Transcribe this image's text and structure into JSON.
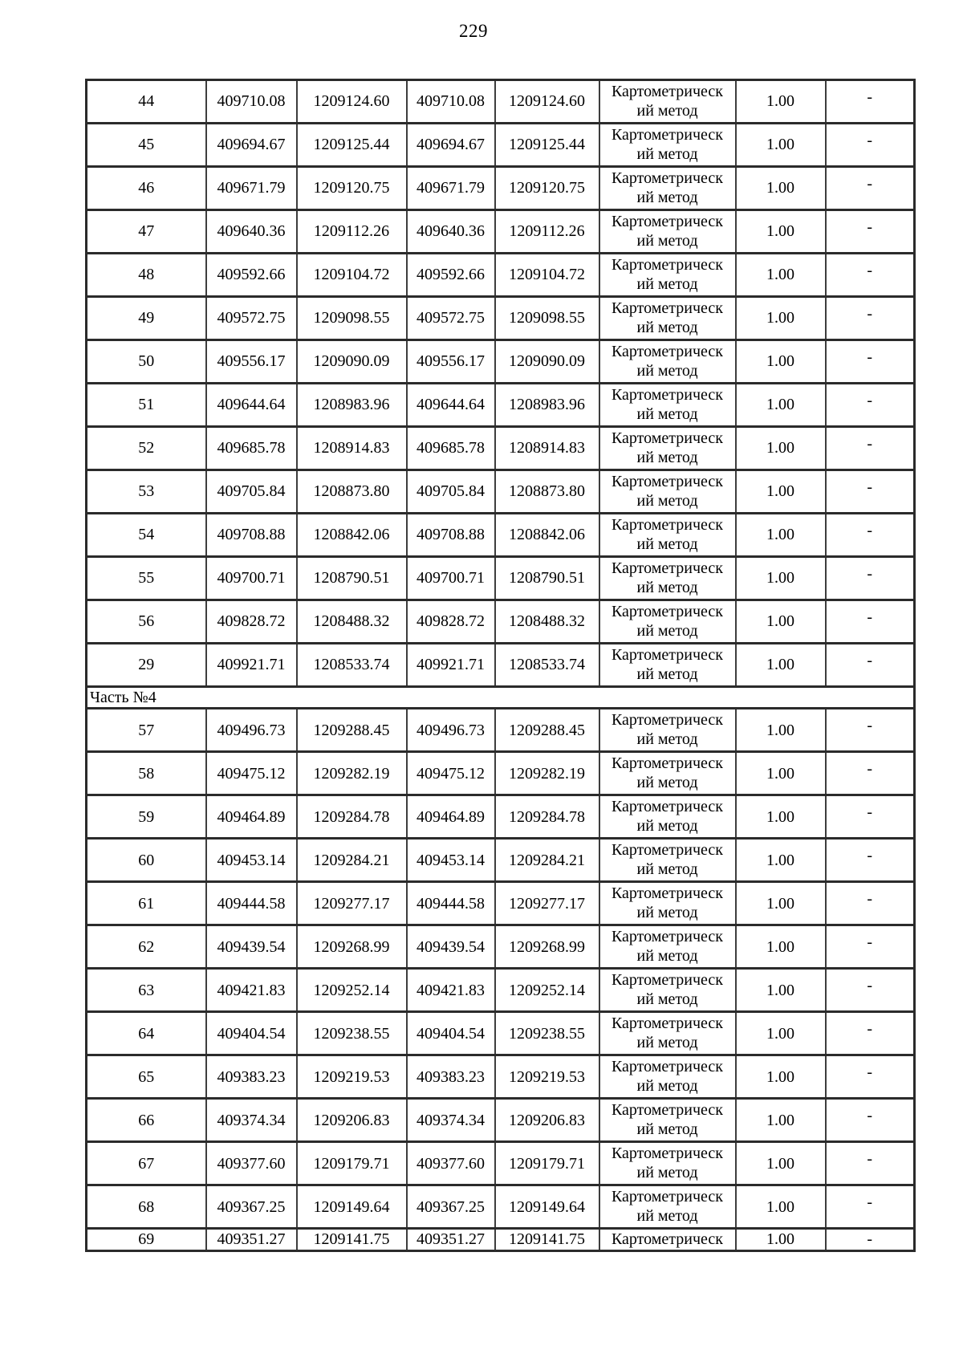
{
  "page": {
    "number": "229"
  },
  "table": {
    "rows": [
      {
        "n": "44",
        "x1": "409710.08",
        "y1": "1209124.60",
        "x2": "409710.08",
        "y2": "1209124.60",
        "method_line1": "Картометрическ",
        "method_line2": "ий метод",
        "precision": "1.00",
        "note": "-"
      },
      {
        "n": "45",
        "x1": "409694.67",
        "y1": "1209125.44",
        "x2": "409694.67",
        "y2": "1209125.44",
        "method_line1": "Картометрическ",
        "method_line2": "ий метод",
        "precision": "1.00",
        "note": "-"
      },
      {
        "n": "46",
        "x1": "409671.79",
        "y1": "1209120.75",
        "x2": "409671.79",
        "y2": "1209120.75",
        "method_line1": "Картометрическ",
        "method_line2": "ий метод",
        "precision": "1.00",
        "note": "-"
      },
      {
        "n": "47",
        "x1": "409640.36",
        "y1": "1209112.26",
        "x2": "409640.36",
        "y2": "1209112.26",
        "method_line1": "Картометрическ",
        "method_line2": "ий метод",
        "precision": "1.00",
        "note": "-"
      },
      {
        "n": "48",
        "x1": "409592.66",
        "y1": "1209104.72",
        "x2": "409592.66",
        "y2": "1209104.72",
        "method_line1": "Картометрическ",
        "method_line2": "ий метод",
        "precision": "1.00",
        "note": "-"
      },
      {
        "n": "49",
        "x1": "409572.75",
        "y1": "1209098.55",
        "x2": "409572.75",
        "y2": "1209098.55",
        "method_line1": "Картометрическ",
        "method_line2": "ий метод",
        "precision": "1.00",
        "note": "-"
      },
      {
        "n": "50",
        "x1": "409556.17",
        "y1": "1209090.09",
        "x2": "409556.17",
        "y2": "1209090.09",
        "method_line1": "Картометрическ",
        "method_line2": "ий метод",
        "precision": "1.00",
        "note": "-"
      },
      {
        "n": "51",
        "x1": "409644.64",
        "y1": "1208983.96",
        "x2": "409644.64",
        "y2": "1208983.96",
        "method_line1": "Картометрическ",
        "method_line2": "ий метод",
        "precision": "1.00",
        "note": "-"
      },
      {
        "n": "52",
        "x1": "409685.78",
        "y1": "1208914.83",
        "x2": "409685.78",
        "y2": "1208914.83",
        "method_line1": "Картометрическ",
        "method_line2": "ий метод",
        "precision": "1.00",
        "note": "-"
      },
      {
        "n": "53",
        "x1": "409705.84",
        "y1": "1208873.80",
        "x2": "409705.84",
        "y2": "1208873.80",
        "method_line1": "Картометрическ",
        "method_line2": "ий метод",
        "precision": "1.00",
        "note": "-"
      },
      {
        "n": "54",
        "x1": "409708.88",
        "y1": "1208842.06",
        "x2": "409708.88",
        "y2": "1208842.06",
        "method_line1": "Картометрическ",
        "method_line2": "ий метод",
        "precision": "1.00",
        "note": "-"
      },
      {
        "n": "55",
        "x1": "409700.71",
        "y1": "1208790.51",
        "x2": "409700.71",
        "y2": "1208790.51",
        "method_line1": "Картометрическ",
        "method_line2": "ий метод",
        "precision": "1.00",
        "note": "-"
      },
      {
        "n": "56",
        "x1": "409828.72",
        "y1": "1208488.32",
        "x2": "409828.72",
        "y2": "1208488.32",
        "method_line1": "Картометрическ",
        "method_line2": "ий метод",
        "precision": "1.00",
        "note": "-"
      },
      {
        "n": "29",
        "x1": "409921.71",
        "y1": "1208533.74",
        "x2": "409921.71",
        "y2": "1208533.74",
        "method_line1": "Картометрическ",
        "method_line2": "ий метод",
        "precision": "1.00",
        "note": "-"
      },
      {
        "section": "Часть №4"
      },
      {
        "n": "57",
        "x1": "409496.73",
        "y1": "1209288.45",
        "x2": "409496.73",
        "y2": "1209288.45",
        "method_line1": "Картометрическ",
        "method_line2": "ий метод",
        "precision": "1.00",
        "note": "-"
      },
      {
        "n": "58",
        "x1": "409475.12",
        "y1": "1209282.19",
        "x2": "409475.12",
        "y2": "1209282.19",
        "method_line1": "Картометрическ",
        "method_line2": "ий метод",
        "precision": "1.00",
        "note": "-"
      },
      {
        "n": "59",
        "x1": "409464.89",
        "y1": "1209284.78",
        "x2": "409464.89",
        "y2": "1209284.78",
        "method_line1": "Картометрическ",
        "method_line2": "ий метод",
        "precision": "1.00",
        "note": "-"
      },
      {
        "n": "60",
        "x1": "409453.14",
        "y1": "1209284.21",
        "x2": "409453.14",
        "y2": "1209284.21",
        "method_line1": "Картометрическ",
        "method_line2": "ий метод",
        "precision": "1.00",
        "note": "-"
      },
      {
        "n": "61",
        "x1": "409444.58",
        "y1": "1209277.17",
        "x2": "409444.58",
        "y2": "1209277.17",
        "method_line1": "Картометрическ",
        "method_line2": "ий метод",
        "precision": "1.00",
        "note": "-"
      },
      {
        "n": "62",
        "x1": "409439.54",
        "y1": "1209268.99",
        "x2": "409439.54",
        "y2": "1209268.99",
        "method_line1": "Картометрическ",
        "method_line2": "ий метод",
        "precision": "1.00",
        "note": "-"
      },
      {
        "n": "63",
        "x1": "409421.83",
        "y1": "1209252.14",
        "x2": "409421.83",
        "y2": "1209252.14",
        "method_line1": "Картометрическ",
        "method_line2": "ий метод",
        "precision": "1.00",
        "note": "-"
      },
      {
        "n": "64",
        "x1": "409404.54",
        "y1": "1209238.55",
        "x2": "409404.54",
        "y2": "1209238.55",
        "method_line1": "Картометрическ",
        "method_line2": "ий метод",
        "precision": "1.00",
        "note": "-"
      },
      {
        "n": "65",
        "x1": "409383.23",
        "y1": "1209219.53",
        "x2": "409383.23",
        "y2": "1209219.53",
        "method_line1": "Картометрическ",
        "method_line2": "ий метод",
        "precision": "1.00",
        "note": "-"
      },
      {
        "n": "66",
        "x1": "409374.34",
        "y1": "1209206.83",
        "x2": "409374.34",
        "y2": "1209206.83",
        "method_line1": "Картометрическ",
        "method_line2": "ий метод",
        "precision": "1.00",
        "note": "-"
      },
      {
        "n": "67",
        "x1": "409377.60",
        "y1": "1209179.71",
        "x2": "409377.60",
        "y2": "1209179.71",
        "method_line1": "Картометрическ",
        "method_line2": "ий метод",
        "precision": "1.00",
        "note": "-"
      },
      {
        "n": "68",
        "x1": "409367.25",
        "y1": "1209149.64",
        "x2": "409367.25",
        "y2": "1209149.64",
        "method_line1": "Картометрическ",
        "method_line2": "ий метод",
        "precision": "1.00",
        "note": "-"
      },
      {
        "n": "69",
        "x1": "409351.27",
        "y1": "1209141.75",
        "x2": "409351.27",
        "y2": "1209141.75",
        "method_line1": "Картометрическ",
        "method_line2": "",
        "precision": "1.00",
        "note": "-",
        "clipped": true
      }
    ]
  }
}
